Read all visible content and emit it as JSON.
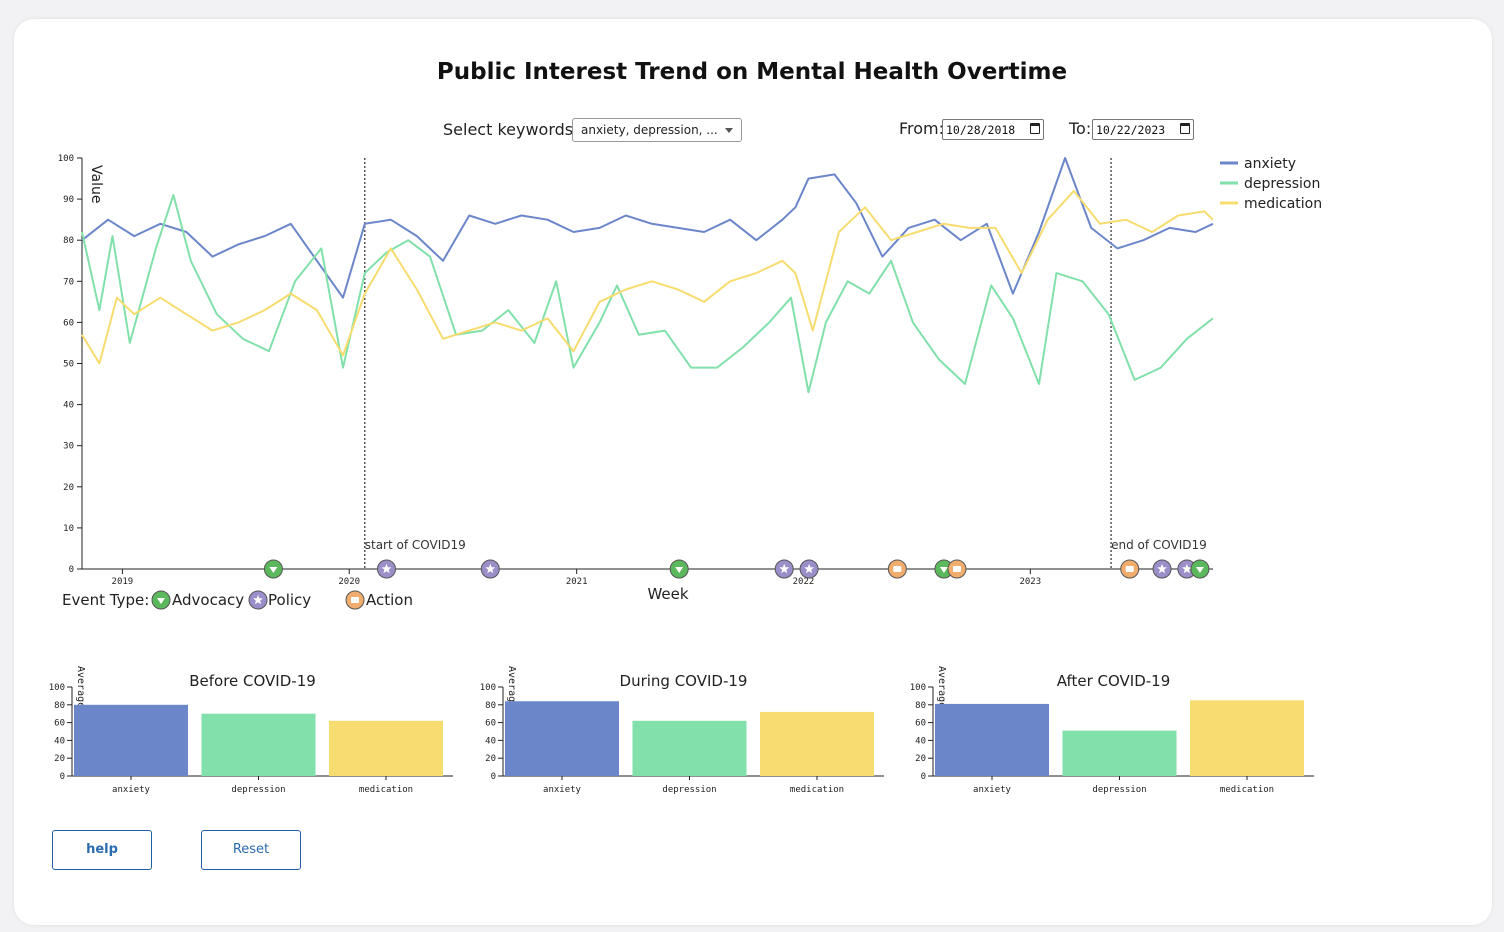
{
  "title": "Public Interest Trend on Mental Health Overtime",
  "controls": {
    "keywords_label": "Select keywords:",
    "keywords_value": "anxiety, depression, ...",
    "from_label": "From:",
    "from_value": "10/28/2018",
    "to_label": "To:",
    "to_value": "10/22/2023"
  },
  "colors": {
    "anxiety": "#6b86c9",
    "depression": "#82e0aa",
    "medication": "#f7dc6f",
    "advocacy": "#5cb85c",
    "policy": "#9b8ec9",
    "action": "#f0ad6e"
  },
  "chart_data": [
    {
      "type": "line",
      "xlabel": "Week",
      "ylabel": "Value",
      "ylim": [
        0,
        100
      ],
      "xlim": [
        "2018-10-28",
        "2023-10-22"
      ],
      "yticks": [
        "0",
        "10",
        "20",
        "30",
        "40",
        "50",
        "60",
        "70",
        "80",
        "90",
        "100"
      ],
      "xticks": [
        {
          "date": "2019-01-01",
          "label": "2019"
        },
        {
          "date": "2020-01-01",
          "label": "2020"
        },
        {
          "date": "2021-01-01",
          "label": "2021"
        },
        {
          "date": "2022-01-01",
          "label": "2022"
        },
        {
          "date": "2023-01-01",
          "label": "2023"
        }
      ],
      "legend_position": "top-right",
      "series": [
        {
          "name": "anxiety",
          "points": [
            [
              "2018-10-28",
              80
            ],
            [
              "2018-12-09",
              85
            ],
            [
              "2019-01-20",
              81
            ],
            [
              "2019-03-03",
              84
            ],
            [
              "2019-04-14",
              82
            ],
            [
              "2019-05-26",
              76
            ],
            [
              "2019-07-07",
              79
            ],
            [
              "2019-08-18",
              81
            ],
            [
              "2019-09-29",
              84
            ],
            [
              "2019-11-10",
              75
            ],
            [
              "2019-12-22",
              66
            ],
            [
              "2020-01-26",
              84
            ],
            [
              "2020-03-08",
              85
            ],
            [
              "2020-04-19",
              81
            ],
            [
              "2020-05-31",
              75
            ],
            [
              "2020-07-12",
              86
            ],
            [
              "2020-08-23",
              84
            ],
            [
              "2020-10-04",
              86
            ],
            [
              "2020-11-15",
              85
            ],
            [
              "2020-12-27",
              82
            ],
            [
              "2021-02-07",
              83
            ],
            [
              "2021-03-21",
              86
            ],
            [
              "2021-05-02",
              84
            ],
            [
              "2021-06-13",
              83
            ],
            [
              "2021-07-25",
              82
            ],
            [
              "2021-09-05",
              85
            ],
            [
              "2021-10-17",
              80
            ],
            [
              "2021-11-28",
              85
            ],
            [
              "2021-12-19",
              88
            ],
            [
              "2022-01-09",
              95
            ],
            [
              "2022-02-20",
              96
            ],
            [
              "2022-03-27",
              89
            ],
            [
              "2022-05-08",
              76
            ],
            [
              "2022-06-19",
              83
            ],
            [
              "2022-07-31",
              85
            ],
            [
              "2022-09-11",
              80
            ],
            [
              "2022-10-23",
              84
            ],
            [
              "2022-12-04",
              67
            ],
            [
              "2023-01-15",
              82
            ],
            [
              "2023-02-26",
              100
            ],
            [
              "2023-04-09",
              83
            ],
            [
              "2023-05-21",
              78
            ],
            [
              "2023-07-02",
              80
            ],
            [
              "2023-08-13",
              83
            ],
            [
              "2023-09-24",
              82
            ],
            [
              "2023-10-22",
              84
            ]
          ]
        },
        {
          "name": "depression",
          "points": [
            [
              "2018-10-28",
              82
            ],
            [
              "2018-11-25",
              63
            ],
            [
              "2018-12-16",
              81
            ],
            [
              "2019-01-13",
              55
            ],
            [
              "2019-02-24",
              78
            ],
            [
              "2019-03-24",
              91
            ],
            [
              "2019-04-21",
              75
            ],
            [
              "2019-06-02",
              62
            ],
            [
              "2019-07-14",
              56
            ],
            [
              "2019-08-25",
              53
            ],
            [
              "2019-10-06",
              70
            ],
            [
              "2019-11-17",
              78
            ],
            [
              "2019-12-22",
              49
            ],
            [
              "2020-01-26",
              72
            ],
            [
              "2020-03-01",
              77
            ],
            [
              "2020-04-05",
              80
            ],
            [
              "2020-05-10",
              76
            ],
            [
              "2020-06-21",
              57
            ],
            [
              "2020-08-02",
              58
            ],
            [
              "2020-09-13",
              63
            ],
            [
              "2020-10-25",
              55
            ],
            [
              "2020-11-29",
              70
            ],
            [
              "2020-12-27",
              49
            ],
            [
              "2021-02-07",
              60
            ],
            [
              "2021-03-07",
              69
            ],
            [
              "2021-04-11",
              57
            ],
            [
              "2021-05-23",
              58
            ],
            [
              "2021-07-04",
              49
            ],
            [
              "2021-08-15",
              49
            ],
            [
              "2021-09-26",
              54
            ],
            [
              "2021-11-07",
              60
            ],
            [
              "2021-12-12",
              66
            ],
            [
              "2022-01-09",
              43
            ],
            [
              "2022-02-06",
              60
            ],
            [
              "2022-03-13",
              70
            ],
            [
              "2022-04-17",
              67
            ],
            [
              "2022-05-22",
              75
            ],
            [
              "2022-06-26",
              60
            ],
            [
              "2022-08-07",
              51
            ],
            [
              "2022-09-18",
              45
            ],
            [
              "2022-10-30",
              69
            ],
            [
              "2022-12-04",
              61
            ],
            [
              "2023-01-15",
              45
            ],
            [
              "2023-02-12",
              72
            ],
            [
              "2023-03-26",
              70
            ],
            [
              "2023-05-07",
              62
            ],
            [
              "2023-06-18",
              46
            ],
            [
              "2023-07-30",
              49
            ],
            [
              "2023-09-10",
              56
            ],
            [
              "2023-10-22",
              61
            ]
          ]
        },
        {
          "name": "medication",
          "points": [
            [
              "2018-10-28",
              57
            ],
            [
              "2018-11-25",
              50
            ],
            [
              "2018-12-23",
              66
            ],
            [
              "2019-01-20",
              62
            ],
            [
              "2019-03-03",
              66
            ],
            [
              "2019-04-14",
              62
            ],
            [
              "2019-05-26",
              58
            ],
            [
              "2019-07-07",
              60
            ],
            [
              "2019-08-18",
              63
            ],
            [
              "2019-09-29",
              67
            ],
            [
              "2019-11-10",
              63
            ],
            [
              "2019-12-22",
              52
            ],
            [
              "2020-01-26",
              67
            ],
            [
              "2020-03-08",
              78
            ],
            [
              "2020-04-19",
              68
            ],
            [
              "2020-05-31",
              56
            ],
            [
              "2020-07-12",
              58
            ],
            [
              "2020-08-23",
              60
            ],
            [
              "2020-10-04",
              58
            ],
            [
              "2020-11-15",
              61
            ],
            [
              "2020-12-27",
              53
            ],
            [
              "2021-02-07",
              65
            ],
            [
              "2021-03-21",
              68
            ],
            [
              "2021-05-02",
              70
            ],
            [
              "2021-06-13",
              68
            ],
            [
              "2021-07-25",
              65
            ],
            [
              "2021-09-05",
              70
            ],
            [
              "2021-10-17",
              72
            ],
            [
              "2021-11-28",
              75
            ],
            [
              "2021-12-19",
              72
            ],
            [
              "2022-01-16",
              58
            ],
            [
              "2022-02-27",
              82
            ],
            [
              "2022-04-10",
              88
            ],
            [
              "2022-05-22",
              80
            ],
            [
              "2022-07-03",
              82
            ],
            [
              "2022-08-14",
              84
            ],
            [
              "2022-09-25",
              83
            ],
            [
              "2022-11-06",
              83
            ],
            [
              "2022-12-18",
              72
            ],
            [
              "2023-01-29",
              85
            ],
            [
              "2023-03-12",
              92
            ],
            [
              "2023-04-23",
              84
            ],
            [
              "2023-06-04",
              85
            ],
            [
              "2023-07-16",
              82
            ],
            [
              "2023-08-27",
              86
            ],
            [
              "2023-10-08",
              87
            ],
            [
              "2023-10-22",
              85
            ]
          ]
        }
      ],
      "annotations": [
        {
          "date": "2020-01-26",
          "label": "start of COVID19"
        },
        {
          "date": "2023-05-11",
          "label": "end of COVID19"
        }
      ],
      "events": [
        {
          "date": "2019-09-01",
          "type": "advocacy"
        },
        {
          "date": "2020-03-01",
          "type": "policy"
        },
        {
          "date": "2020-08-15",
          "type": "policy"
        },
        {
          "date": "2021-06-15",
          "type": "advocacy"
        },
        {
          "date": "2021-12-01",
          "type": "policy"
        },
        {
          "date": "2022-01-10",
          "type": "policy"
        },
        {
          "date": "2022-06-01",
          "type": "action"
        },
        {
          "date": "2022-08-15",
          "type": "advocacy"
        },
        {
          "date": "2022-09-05",
          "type": "action"
        },
        {
          "date": "2023-06-10",
          "type": "action"
        },
        {
          "date": "2023-08-01",
          "type": "policy"
        },
        {
          "date": "2023-09-10",
          "type": "policy"
        },
        {
          "date": "2023-10-01",
          "type": "advocacy"
        }
      ],
      "event_legend": {
        "label": "Event Type:",
        "items": [
          {
            "type": "advocacy",
            "label": "Advocacy"
          },
          {
            "type": "policy",
            "label": "Policy"
          },
          {
            "type": "action",
            "label": "Action"
          }
        ]
      }
    },
    {
      "type": "bar",
      "title": "Before COVID-19",
      "ylabel": "Average",
      "ylim": [
        0,
        100
      ],
      "yticks": [
        "0",
        "20",
        "40",
        "60",
        "80",
        "100"
      ],
      "categories": [
        "anxiety",
        "depression",
        "medication"
      ],
      "values": [
        80,
        70,
        62
      ]
    },
    {
      "type": "bar",
      "title": "During COVID-19",
      "ylabel": "Average",
      "ylim": [
        0,
        100
      ],
      "yticks": [
        "0",
        "20",
        "40",
        "60",
        "80",
        "100"
      ],
      "categories": [
        "anxiety",
        "depression",
        "medication"
      ],
      "values": [
        84,
        62,
        72
      ]
    },
    {
      "type": "bar",
      "title": "After COVID-19",
      "ylabel": "Average",
      "ylim": [
        0,
        100
      ],
      "yticks": [
        "0",
        "20",
        "40",
        "60",
        "80",
        "100"
      ],
      "categories": [
        "anxiety",
        "depression",
        "medication"
      ],
      "values": [
        81,
        51,
        85
      ]
    }
  ],
  "buttons": {
    "help": "help",
    "reset": "Reset"
  }
}
